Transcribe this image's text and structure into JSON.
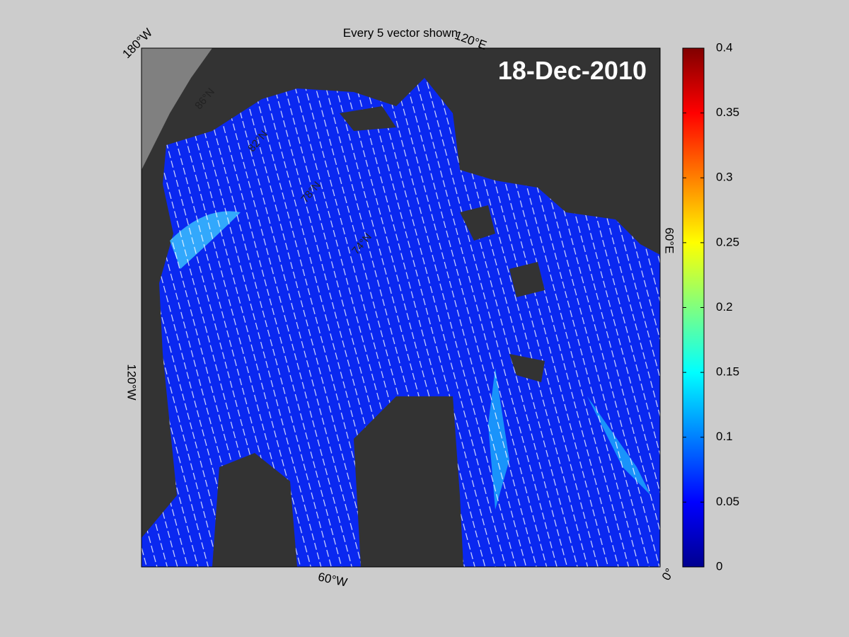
{
  "title": "Every 5 vector shown",
  "date": "18-Dec-2010",
  "longitude_labels": [
    "180°W",
    "120°E",
    "60°E",
    "0°",
    "60°W",
    "120°W"
  ],
  "latitude_labels": [
    "86°N",
    "82°N",
    "78°N",
    "74°N"
  ],
  "colorbar": {
    "lim": [
      0,
      0.4
    ],
    "ticks": [
      0,
      0.05,
      0.1,
      0.15,
      0.2,
      0.25,
      0.3,
      0.35,
      0.4
    ]
  }
}
